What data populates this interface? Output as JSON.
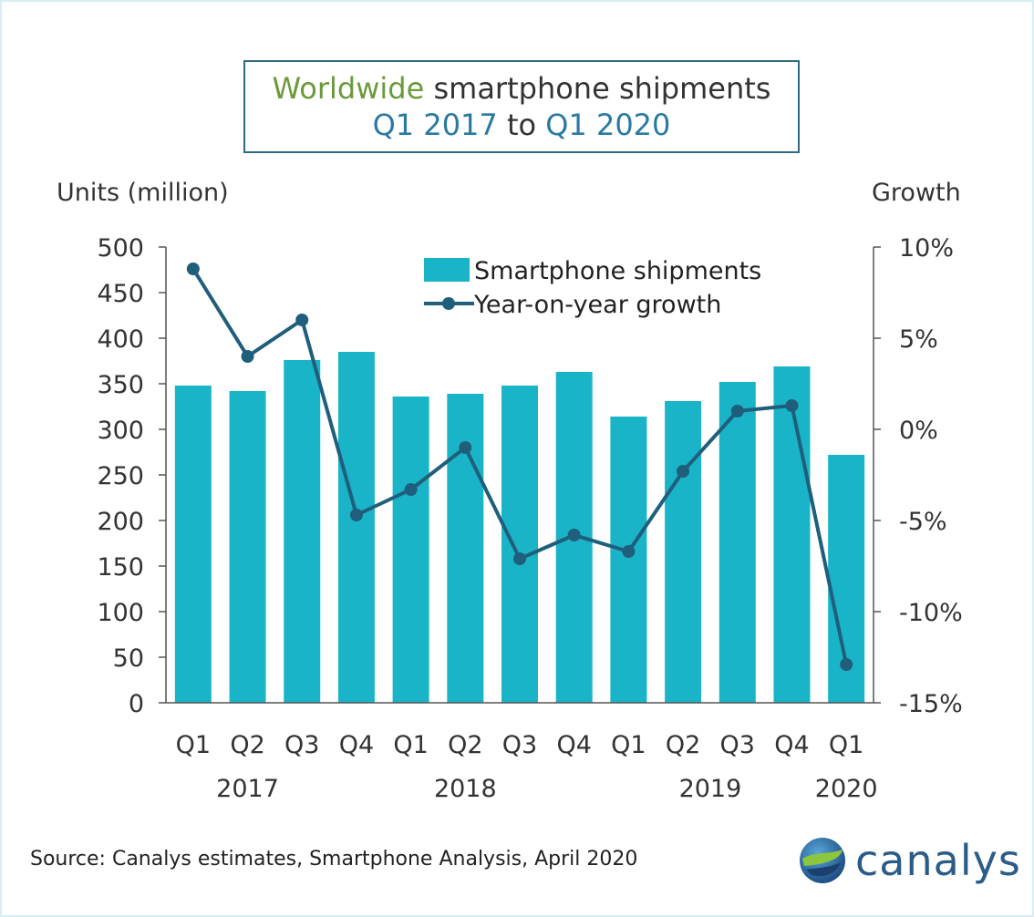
{
  "title": {
    "line1_highlight": "Worldwide",
    "line1_rest": " smartphone shipments",
    "line2_start": "Q1 2017",
    "line2_mid": " to ",
    "line2_end": "Q1 2020"
  },
  "left_axis_title": "Units (million)",
  "right_axis_title": "Growth",
  "source": "Source: Canalys estimates, Smartphone Analysis, April 2020",
  "logo_text": "canalys",
  "colors": {
    "bar": "#1ab4c8",
    "line": "#1f5f7c",
    "axis": "#555555",
    "title_green": "#6b9a3a",
    "title_blue": "#2a7aa0"
  },
  "chart_data": {
    "type": "bar",
    "title": "Worldwide smartphone shipments Q1 2017 to Q1 2020",
    "categories": [
      "Q1",
      "Q2",
      "Q3",
      "Q4",
      "Q1",
      "Q2",
      "Q3",
      "Q4",
      "Q1",
      "Q2",
      "Q3",
      "Q4",
      "Q1"
    ],
    "year_labels": [
      {
        "label": "2017",
        "index": 1
      },
      {
        "label": "2018",
        "index": 5
      },
      {
        "label": "2019",
        "index": 9.5
      },
      {
        "label": "2020",
        "index": 12
      }
    ],
    "series": [
      {
        "name": "Smartphone shipments",
        "type": "bar",
        "axis": "left",
        "values": [
          348,
          342,
          376,
          385,
          336,
          339,
          348,
          363,
          314,
          331,
          352,
          369,
          272
        ]
      },
      {
        "name": "Year-on-year growth",
        "type": "line",
        "axis": "right",
        "values": [
          8.8,
          4.0,
          6.0,
          -4.7,
          -3.3,
          -1.0,
          -7.1,
          -5.8,
          -6.7,
          -2.3,
          1.0,
          1.3,
          -12.9
        ]
      }
    ],
    "left_axis": {
      "label": "Units (million)",
      "ylim": [
        0,
        500
      ],
      "ticks": [
        0,
        50,
        100,
        150,
        200,
        250,
        300,
        350,
        400,
        450,
        500
      ],
      "tick_labels": [
        "0",
        "50",
        "100",
        "150",
        "200",
        "250",
        "300",
        "350",
        "400",
        "450",
        "500"
      ]
    },
    "right_axis": {
      "label": "Growth",
      "ylim": [
        -15,
        10
      ],
      "ticks": [
        -15,
        -10,
        -5,
        0,
        5,
        10
      ],
      "tick_labels": [
        "-15%",
        "-10%",
        "-5%",
        "0%",
        "5%",
        "10%"
      ]
    },
    "grid": false,
    "legend": "top-center"
  }
}
